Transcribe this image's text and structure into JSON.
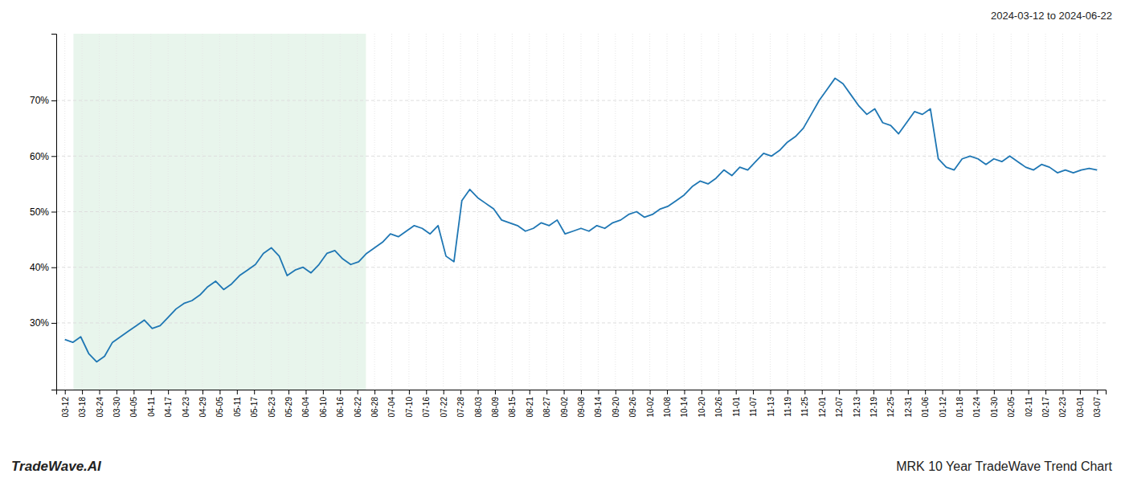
{
  "chart_data": {
    "type": "line",
    "title": "MRK 10 Year TradeWave Trend Chart",
    "subtitle": "2024-03-12 to 2024-06-22",
    "annotations": [
      "TradeWave.AI"
    ],
    "grid": true,
    "shade": {
      "x": [
        0.5,
        17.5
      ],
      "color": "#cce8d4"
    },
    "xlim": [
      -0.5,
      60.5
    ],
    "xticks": [
      {
        "value": 0,
        "label": "03-12"
      },
      {
        "value": 1,
        "label": "03-18"
      },
      {
        "value": 2,
        "label": "03-24"
      },
      {
        "value": 3,
        "label": "03-30"
      },
      {
        "value": 4,
        "label": "04-05"
      },
      {
        "value": 5,
        "label": "04-11"
      },
      {
        "value": 6,
        "label": "04-17"
      },
      {
        "value": 7,
        "label": "04-23"
      },
      {
        "value": 8,
        "label": "04-29"
      },
      {
        "value": 9,
        "label": "05-05"
      },
      {
        "value": 10,
        "label": "05-11"
      },
      {
        "value": 11,
        "label": "05-17"
      },
      {
        "value": 12,
        "label": "05-23"
      },
      {
        "value": 13,
        "label": "05-29"
      },
      {
        "value": 14,
        "label": "06-04"
      },
      {
        "value": 15,
        "label": "06-10"
      },
      {
        "value": 16,
        "label": "06-16"
      },
      {
        "value": 17,
        "label": "06-22"
      },
      {
        "value": 18,
        "label": "06-28"
      },
      {
        "value": 19,
        "label": "07-04"
      },
      {
        "value": 20,
        "label": "07-10"
      },
      {
        "value": 21,
        "label": "07-16"
      },
      {
        "value": 22,
        "label": "07-22"
      },
      {
        "value": 23,
        "label": "07-28"
      },
      {
        "value": 24,
        "label": "08-03"
      },
      {
        "value": 25,
        "label": "08-09"
      },
      {
        "value": 26,
        "label": "08-15"
      },
      {
        "value": 27,
        "label": "08-21"
      },
      {
        "value": 28,
        "label": "08-27"
      },
      {
        "value": 29,
        "label": "09-02"
      },
      {
        "value": 30,
        "label": "09-08"
      },
      {
        "value": 31,
        "label": "09-14"
      },
      {
        "value": 32,
        "label": "09-20"
      },
      {
        "value": 33,
        "label": "09-26"
      },
      {
        "value": 34,
        "label": "10-02"
      },
      {
        "value": 35,
        "label": "10-08"
      },
      {
        "value": 36,
        "label": "10-14"
      },
      {
        "value": 37,
        "label": "10-20"
      },
      {
        "value": 38,
        "label": "10-26"
      },
      {
        "value": 39,
        "label": "11-01"
      },
      {
        "value": 40,
        "label": "11-07"
      },
      {
        "value": 41,
        "label": "11-13"
      },
      {
        "value": 42,
        "label": "11-19"
      },
      {
        "value": 43,
        "label": "11-25"
      },
      {
        "value": 44,
        "label": "12-01"
      },
      {
        "value": 45,
        "label": "12-07"
      },
      {
        "value": 46,
        "label": "12-13"
      },
      {
        "value": 47,
        "label": "12-19"
      },
      {
        "value": 48,
        "label": "12-25"
      },
      {
        "value": 49,
        "label": "12-31"
      },
      {
        "value": 50,
        "label": "01-06"
      },
      {
        "value": 51,
        "label": "01-12"
      },
      {
        "value": 52,
        "label": "01-18"
      },
      {
        "value": 53,
        "label": "01-24"
      },
      {
        "value": 54,
        "label": "01-30"
      },
      {
        "value": 55,
        "label": "02-05"
      },
      {
        "value": 56,
        "label": "02-11"
      },
      {
        "value": 57,
        "label": "02-17"
      },
      {
        "value": 58,
        "label": "02-23"
      },
      {
        "value": 59,
        "label": "03-01"
      },
      {
        "value": 60,
        "label": "03-07"
      }
    ],
    "ylim": [
      18,
      82
    ],
    "yticks": [
      {
        "value": 30,
        "label": "30%"
      },
      {
        "value": 40,
        "label": "40%"
      },
      {
        "value": 50,
        "label": "50%"
      },
      {
        "value": 60,
        "label": "60%"
      },
      {
        "value": 70,
        "label": "70%"
      }
    ],
    "x": [
      0,
      0.461538,
      0.923077,
      1.384615,
      1.846154,
      2.307692,
      2.769231,
      3.230769,
      3.692308,
      4.153846,
      4.615385,
      5.076923,
      5.538462,
      6,
      6.461538,
      6.923077,
      7.384615,
      7.846154,
      8.307692,
      8.769231,
      9.230769,
      9.692308,
      10.153846,
      10.615385,
      11.076923,
      11.538462,
      12,
      12.461538,
      12.923077,
      13.384615,
      13.846154,
      14.307692,
      14.769231,
      15.230769,
      15.692308,
      16.153846,
      16.615385,
      17.076923,
      17.538462,
      18,
      18.461538,
      18.923077,
      19.384615,
      19.846154,
      20.307692,
      20.769231,
      21.230769,
      21.692308,
      22.153846,
      22.615385,
      23.076923,
      23.538462,
      24,
      24.461538,
      24.923077,
      25.384615,
      25.846154,
      26.307692,
      26.769231,
      27.230769,
      27.692308,
      28.153846,
      28.615385,
      29.076923,
      29.538462,
      30,
      30.461538,
      30.923077,
      31.384615,
      31.846154,
      32.307692,
      32.769231,
      33.230769,
      33.692308,
      34.153846,
      34.615385,
      35.076923,
      35.538462,
      36,
      36.461538,
      36.923077,
      37.384615,
      37.846154,
      38.307692,
      38.769231,
      39.230769,
      39.692308,
      40.153846,
      40.615385,
      41.076923,
      41.538462,
      42,
      42.461538,
      42.923077,
      43.384615,
      43.846154,
      44.307692,
      44.769231,
      45.230769,
      45.692308,
      46.153846,
      46.615385,
      47.076923,
      47.538462,
      48,
      48.461538,
      48.923077,
      49.384615,
      49.846154,
      50.307692,
      50.769231,
      51.230769,
      51.692308,
      52.153846,
      52.615385,
      53.076923,
      53.538462,
      54,
      54.461538,
      54.923077,
      55.384615,
      55.846154,
      56.307692,
      56.769231,
      57.230769,
      57.692308,
      58.153846,
      58.615385,
      59.076923,
      59.538462,
      60
    ],
    "values": [
      27.0,
      26.5,
      27.5,
      24.5,
      23.0,
      24.0,
      26.5,
      27.5,
      28.5,
      29.5,
      30.5,
      29.0,
      29.5,
      31.0,
      32.5,
      33.5,
      34.0,
      35.0,
      36.5,
      37.5,
      36.0,
      37.0,
      38.5,
      39.5,
      40.5,
      42.5,
      43.5,
      42.0,
      38.5,
      39.5,
      40.0,
      39.0,
      40.5,
      42.5,
      43.0,
      41.5,
      40.5,
      41.0,
      42.5,
      43.5,
      44.5,
      46.0,
      45.5,
      46.5,
      47.5,
      47.0,
      46.0,
      47.5,
      42.0,
      41.0,
      52.0,
      54.0,
      52.5,
      51.5,
      50.5,
      48.5,
      48.0,
      47.5,
      46.5,
      47.0,
      48.0,
      47.5,
      48.5,
      46.0,
      46.5,
      47.0,
      46.5,
      47.5,
      47.0,
      48.0,
      48.5,
      49.5,
      50.0,
      49.0,
      49.5,
      50.5,
      51.0,
      52.0,
      53.0,
      54.5,
      55.5,
      55.0,
      56.0,
      57.5,
      56.5,
      58.0,
      57.5,
      59.0,
      60.5,
      60.0,
      61.0,
      62.5,
      63.5,
      65.0,
      67.5,
      70.0,
      72.0,
      74.0,
      73.0,
      71.0,
      69.0,
      67.5,
      68.5,
      66.0,
      65.5,
      64.0,
      66.0,
      68.0,
      67.5,
      68.5,
      59.5,
      58.0,
      57.5,
      59.5,
      60.0,
      59.5,
      58.5,
      59.5,
      59.0,
      60.0,
      59.0,
      58.0,
      57.5,
      58.5,
      58.0,
      57.0,
      57.5,
      57.0,
      57.5,
      57.8,
      57.5
    ]
  }
}
